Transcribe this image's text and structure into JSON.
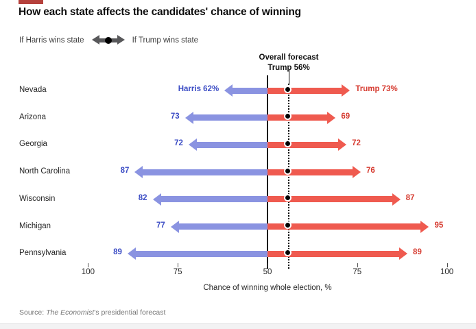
{
  "page": {
    "title": "How each state affects the candidates' chance of winning"
  },
  "legend": {
    "harris_label": "If Harris wins state",
    "trump_label": "If Trump wins state",
    "icon": "double-headed-arrow-with-dot-icon"
  },
  "annotation": {
    "line1": "Overall forecast",
    "line2": "Trump 56%",
    "overall_trump_pct": 56
  },
  "axis": {
    "tick_labels": [
      "100",
      "75",
      "50",
      "75",
      "100"
    ],
    "caption": "Chance of winning whole election, %"
  },
  "source": {
    "prefix": "Source: ",
    "publication": "The Economist",
    "suffix": "’s presidential forecast"
  },
  "colors": {
    "harris_bar": "#8a93e1",
    "harris_text": "#3a4bc4",
    "trump_bar": "#ef5a4f",
    "trump_text": "#d63b30",
    "forecast_dot": "#000000",
    "legend_arrow": "#58585a",
    "brand_red": "#b5413c"
  },
  "chart_data": {
    "type": "bar",
    "variant": "diverging-arrow-dumbbell",
    "title": "How each state affects the candidates' chance of winning",
    "xlabel": "Chance of winning whole election, %",
    "center_value": 50,
    "axis_range_each_side": [
      50,
      100
    ],
    "overall_forecast": {
      "candidate": "Trump",
      "value": 56
    },
    "categories": [
      "Nevada",
      "Arizona",
      "Georgia",
      "North Carolina",
      "Wisconsin",
      "Michigan",
      "Pennsylvania"
    ],
    "series": [
      {
        "name": "If Harris wins state (Harris chance of winning election, %)",
        "values": [
          62,
          73,
          72,
          87,
          82,
          77,
          89
        ]
      },
      {
        "name": "If Trump wins state (Trump chance of winning election, %)",
        "values": [
          73,
          69,
          72,
          76,
          87,
          95,
          89
        ]
      }
    ],
    "rows": [
      {
        "state": "Nevada",
        "harris": 62,
        "trump": 73,
        "harris_label": "Harris 62%",
        "trump_label": "Trump 73%"
      },
      {
        "state": "Arizona",
        "harris": 73,
        "trump": 69,
        "harris_label": "73",
        "trump_label": "69"
      },
      {
        "state": "Georgia",
        "harris": 72,
        "trump": 72,
        "harris_label": "72",
        "trump_label": "72"
      },
      {
        "state": "North Carolina",
        "harris": 87,
        "trump": 76,
        "harris_label": "87",
        "trump_label": "76"
      },
      {
        "state": "Wisconsin",
        "harris": 82,
        "trump": 87,
        "harris_label": "82",
        "trump_label": "87"
      },
      {
        "state": "Michigan",
        "harris": 77,
        "trump": 95,
        "harris_label": "77",
        "trump_label": "95"
      },
      {
        "state": "Pennsylvania",
        "harris": 89,
        "trump": 89,
        "harris_label": "89",
        "trump_label": "89"
      }
    ]
  }
}
